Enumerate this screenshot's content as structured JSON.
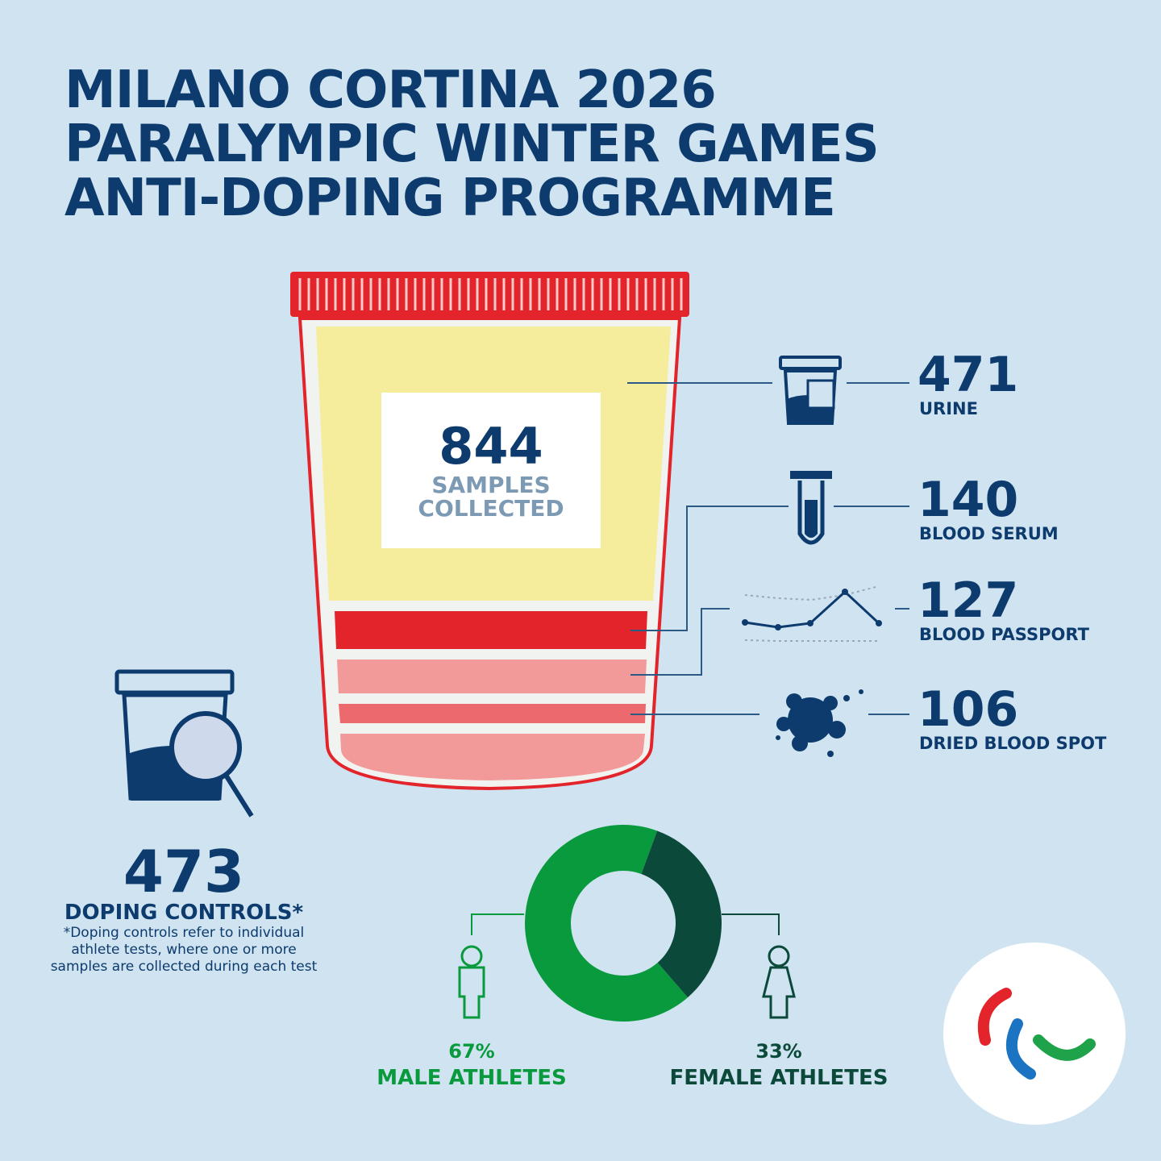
{
  "title": [
    "MILANO CORTINA 2026",
    "PARALYMPIC WINTER GAMES",
    "ANTI-DOPING PROGRAMME"
  ],
  "total": {
    "value": 844,
    "label": [
      "SAMPLES",
      "COLLECTED"
    ]
  },
  "samples": [
    {
      "value": 471,
      "label": "URINE"
    },
    {
      "value": 140,
      "label": "BLOOD SERUM"
    },
    {
      "value": 127,
      "label": "BLOOD PASSPORT"
    },
    {
      "value": 106,
      "label": "DRIED BLOOD SPOT"
    }
  ],
  "controls": {
    "value": 473,
    "label": "DOPING CONTROLS*",
    "note": [
      "*Doping controls refer to individual",
      "athlete tests, where one or more",
      "samples are collected during each test"
    ]
  },
  "chart_data": {
    "type": "donut",
    "categories": [
      "MALE ATHLETES",
      "FEMALE ATHLETES"
    ],
    "values": [
      67,
      33
    ],
    "value_labels": [
      "67%",
      "33%"
    ],
    "colors": [
      "#0a9a3e",
      "#0b4a3a"
    ]
  }
}
